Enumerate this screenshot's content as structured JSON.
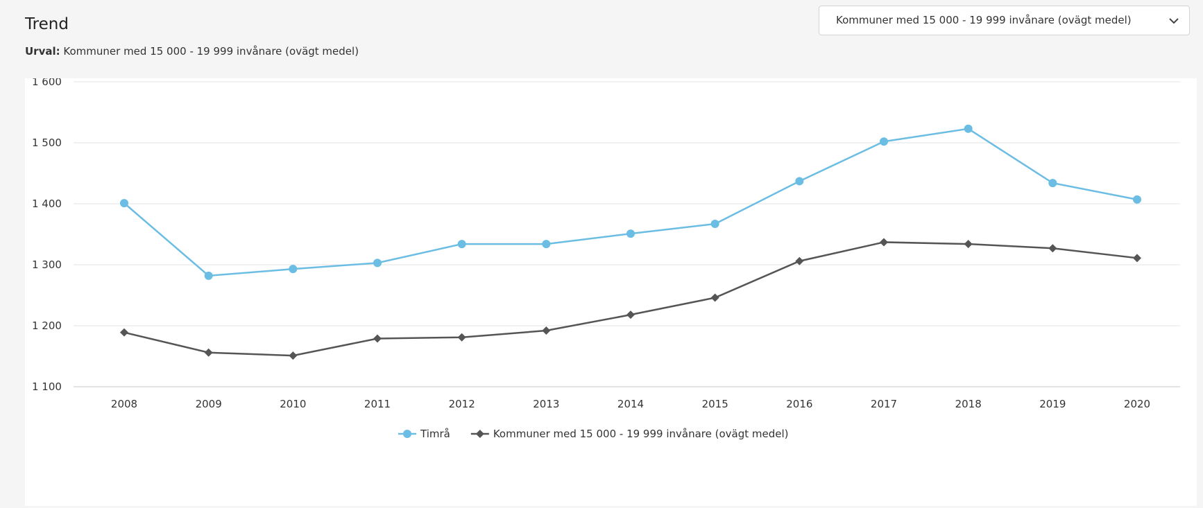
{
  "header": {
    "title": "Trend",
    "urval_label": "Urval:",
    "urval_value": "Kommuner med 15 000 - 19 999 invånare (ovägt medel)"
  },
  "dropdown": {
    "selected": "Kommuner med 15 000 - 19 999 invånare (ovägt medel)",
    "icon": "chevron-down-icon"
  },
  "chart_data": {
    "type": "line",
    "title": "",
    "xlabel": "",
    "ylabel": "",
    "x": [
      "2008",
      "2009",
      "2010",
      "2011",
      "2012",
      "2013",
      "2014",
      "2015",
      "2016",
      "2017",
      "2018",
      "2019",
      "2020"
    ],
    "ylim": [
      1100,
      1600
    ],
    "yticks": [
      1100,
      1200,
      1300,
      1400,
      1500,
      1600
    ],
    "ytick_labels": [
      "1 100",
      "1 200",
      "1 300",
      "1 400",
      "1 500",
      "1 600"
    ],
    "grid": true,
    "legend_position": "bottom-center",
    "series": [
      {
        "name": "Timrå",
        "color": "#6bbde3",
        "marker": "circle",
        "values": [
          1401,
          1282,
          1293,
          1303,
          1334,
          1334,
          1351,
          1367,
          1437,
          1502,
          1523,
          1434,
          1407
        ]
      },
      {
        "name": "Kommuner med 15 000 - 19 999 invånare (ovägt medel)",
        "color": "#555555",
        "marker": "diamond",
        "values": [
          1189,
          1156,
          1151,
          1179,
          1181,
          1192,
          1218,
          1246,
          1306,
          1337,
          1334,
          1327,
          1311
        ]
      }
    ]
  }
}
